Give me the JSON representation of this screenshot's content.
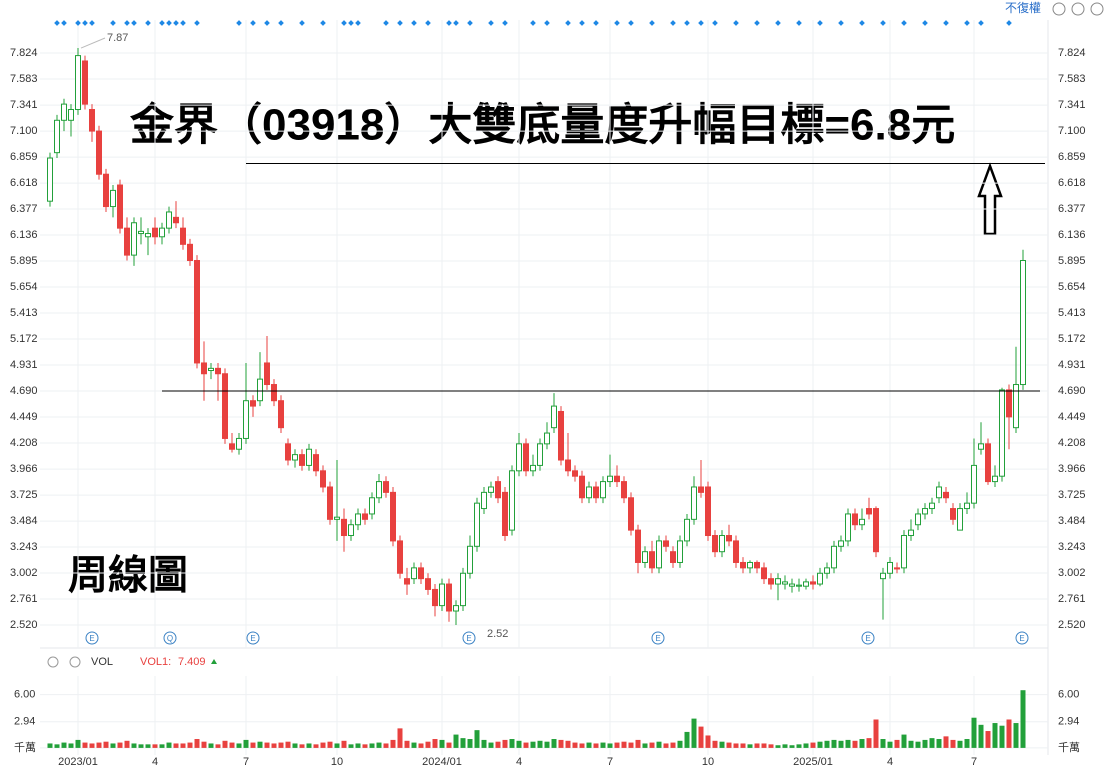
{
  "chart_data": {
    "type": "candlestick",
    "title": "金界（03918）大雙底量度升幅目標=6.8元",
    "subtitle": "周線圖",
    "mode_label": "不復權",
    "volume_label": "VOL",
    "vol1_label": "VOL1:",
    "vol1_value": 7.409,
    "high_label": 7.87,
    "low_label": 2.52,
    "event_markers": [
      "E",
      "Q",
      "E",
      "E",
      "E",
      "E",
      "E"
    ],
    "lines": [
      6.8,
      4.69
    ],
    "up_color": "#22a03a",
    "down_color": "#e8413f",
    "ylim": [
      2.307,
      8.13
    ],
    "yticks": [
      {
        "value": 7.824,
        "label": "7.824"
      },
      {
        "value": 7.583,
        "label": "7.583"
      },
      {
        "value": 7.341,
        "label": "7.341"
      },
      {
        "value": 7.1,
        "label": "7.100"
      },
      {
        "value": 6.859,
        "label": "6.859"
      },
      {
        "value": 6.618,
        "label": "6.618"
      },
      {
        "value": 6.377,
        "label": "6.377"
      },
      {
        "value": 6.136,
        "label": "6.136"
      },
      {
        "value": 5.895,
        "label": "5.895"
      },
      {
        "value": 5.654,
        "label": "5.654"
      },
      {
        "value": 5.413,
        "label": "5.413"
      },
      {
        "value": 5.172,
        "label": "5.172"
      },
      {
        "value": 4.931,
        "label": "4.931"
      },
      {
        "value": 4.69,
        "label": "4.690"
      },
      {
        "value": 4.449,
        "label": "4.449"
      },
      {
        "value": 4.208,
        "label": "4.208"
      },
      {
        "value": 3.966,
        "label": "3.966"
      },
      {
        "value": 3.725,
        "label": "3.725"
      },
      {
        "value": 3.484,
        "label": "3.484"
      },
      {
        "value": 3.243,
        "label": "3.243"
      },
      {
        "value": 3.002,
        "label": "3.002"
      },
      {
        "value": 2.761,
        "label": "2.761"
      },
      {
        "value": 2.52,
        "label": "2.520"
      }
    ],
    "vol_ylim": [
      -0.8,
      8.1
    ],
    "vol_yticks": [
      {
        "value": 6,
        "label": "6.00"
      },
      2.94,
      {
        "value": 0,
        "label": "千萬"
      }
    ],
    "xticks": [
      {
        "value": 4,
        "label": "2023/01"
      },
      {
        "value": 15,
        "label": "4"
      },
      {
        "value": 28,
        "label": "7"
      },
      {
        "value": 41,
        "label": "10"
      },
      {
        "value": 56,
        "label": "2024/01"
      },
      {
        "value": 67,
        "label": "4"
      },
      {
        "value": 80,
        "label": "7"
      },
      {
        "value": 94,
        "label": "10"
      },
      {
        "value": 109,
        "label": "2025/01"
      },
      {
        "value": 120,
        "label": "4"
      },
      {
        "value": 132,
        "label": "7"
      }
    ],
    "candles": [
      [
        6.45,
        6.9,
        6.4,
        6.85
      ],
      [
        6.9,
        7.25,
        6.85,
        7.2
      ],
      [
        7.2,
        7.4,
        7.1,
        7.35
      ],
      [
        7.2,
        7.35,
        7.05,
        7.3
      ],
      [
        7.3,
        7.87,
        7.25,
        7.8
      ],
      [
        7.75,
        7.8,
        7.3,
        7.35
      ],
      [
        7.3,
        7.35,
        7.0,
        7.1
      ],
      [
        7.1,
        7.15,
        6.65,
        6.7
      ],
      [
        6.7,
        6.75,
        6.35,
        6.4
      ],
      [
        6.4,
        6.6,
        6.3,
        6.55
      ],
      [
        6.6,
        6.65,
        6.15,
        6.2
      ],
      [
        6.2,
        6.3,
        5.9,
        5.95
      ],
      [
        5.95,
        6.3,
        5.85,
        6.25
      ],
      [
        6.15,
        6.3,
        6.05,
        6.17
      ],
      [
        6.12,
        6.2,
        5.95,
        6.15
      ],
      [
        6.2,
        6.3,
        6.05,
        6.12
      ],
      [
        6.12,
        6.25,
        6.05,
        6.2
      ],
      [
        6.2,
        6.4,
        6.15,
        6.35
      ],
      [
        6.3,
        6.45,
        6.2,
        6.25
      ],
      [
        6.2,
        6.3,
        6.0,
        6.05
      ],
      [
        6.05,
        6.1,
        5.85,
        5.9
      ],
      [
        5.9,
        5.95,
        4.9,
        4.95
      ],
      [
        4.95,
        5.15,
        4.6,
        4.85
      ],
      [
        4.88,
        4.95,
        4.8,
        4.9
      ],
      [
        4.9,
        4.95,
        4.6,
        4.85
      ],
      [
        4.85,
        4.9,
        4.2,
        4.25
      ],
      [
        4.2,
        4.3,
        4.12,
        4.15
      ],
      [
        4.15,
        4.3,
        4.1,
        4.25
      ],
      [
        4.25,
        4.95,
        4.2,
        4.6
      ],
      [
        4.6,
        4.65,
        4.45,
        4.55
      ],
      [
        4.6,
        5.05,
        4.55,
        4.8
      ],
      [
        4.95,
        5.2,
        4.7,
        4.75
      ],
      [
        4.75,
        4.8,
        4.55,
        4.6
      ],
      [
        4.6,
        4.65,
        4.3,
        4.35
      ],
      [
        4.2,
        4.25,
        4.0,
        4.05
      ],
      [
        4.05,
        4.15,
        3.98,
        4.1
      ],
      [
        4.1,
        4.15,
        3.95,
        4.0
      ],
      [
        4.0,
        4.2,
        3.95,
        4.15
      ],
      [
        4.1,
        4.15,
        3.9,
        3.95
      ],
      [
        3.95,
        4.0,
        3.75,
        3.8
      ],
      [
        3.8,
        3.85,
        3.45,
        3.5
      ],
      [
        3.5,
        4.05,
        3.3,
        3.52
      ],
      [
        3.5,
        3.6,
        3.2,
        3.35
      ],
      [
        3.35,
        3.5,
        3.3,
        3.45
      ],
      [
        3.45,
        3.6,
        3.4,
        3.55
      ],
      [
        3.55,
        3.6,
        3.45,
        3.5
      ],
      [
        3.55,
        3.75,
        3.5,
        3.7
      ],
      [
        3.7,
        3.92,
        3.65,
        3.85
      ],
      [
        3.85,
        3.9,
        3.7,
        3.75
      ],
      [
        3.75,
        3.8,
        3.25,
        3.3
      ],
      [
        3.3,
        3.35,
        2.95,
        3.0
      ],
      [
        2.95,
        3.05,
        2.8,
        2.9
      ],
      [
        2.95,
        3.1,
        2.9,
        3.05
      ],
      [
        3.05,
        3.1,
        2.9,
        2.95
      ],
      [
        2.95,
        3.0,
        2.8,
        2.85
      ],
      [
        2.85,
        2.9,
        2.6,
        2.7
      ],
      [
        2.7,
        2.95,
        2.65,
        2.9
      ],
      [
        2.9,
        2.95,
        2.55,
        2.65
      ],
      [
        2.65,
        2.75,
        2.52,
        2.7
      ],
      [
        2.7,
        3.05,
        2.65,
        3.0
      ],
      [
        3.0,
        3.35,
        2.95,
        3.25
      ],
      [
        3.25,
        3.7,
        3.2,
        3.65
      ],
      [
        3.6,
        3.8,
        3.55,
        3.75
      ],
      [
        3.75,
        3.85,
        3.7,
        3.8
      ],
      [
        3.85,
        3.9,
        3.65,
        3.7
      ],
      [
        3.75,
        3.8,
        3.3,
        3.35
      ],
      [
        3.4,
        4.0,
        3.35,
        3.95
      ],
      [
        3.95,
        4.3,
        3.9,
        4.2
      ],
      [
        4.2,
        4.25,
        3.9,
        3.95
      ],
      [
        3.95,
        4.1,
        3.9,
        4.0
      ],
      [
        4.0,
        4.25,
        3.95,
        4.2
      ],
      [
        4.2,
        4.4,
        4.15,
        4.3
      ],
      [
        4.35,
        4.67,
        4.3,
        4.55
      ],
      [
        4.5,
        4.55,
        4.0,
        4.05
      ],
      [
        4.05,
        4.3,
        3.9,
        3.95
      ],
      [
        3.95,
        4.0,
        3.85,
        3.9
      ],
      [
        3.9,
        3.95,
        3.65,
        3.7
      ],
      [
        3.7,
        3.85,
        3.65,
        3.8
      ],
      [
        3.8,
        3.85,
        3.65,
        3.7
      ],
      [
        3.7,
        3.9,
        3.65,
        3.85
      ],
      [
        3.85,
        4.1,
        3.8,
        3.9
      ],
      [
        3.9,
        4.0,
        3.8,
        3.85
      ],
      [
        3.85,
        3.9,
        3.65,
        3.7
      ],
      [
        3.7,
        3.75,
        3.35,
        3.4
      ],
      [
        3.4,
        3.45,
        3.0,
        3.1
      ],
      [
        3.1,
        3.25,
        3.05,
        3.2
      ],
      [
        3.2,
        3.3,
        3.0,
        3.05
      ],
      [
        3.05,
        3.35,
        3.0,
        3.3
      ],
      [
        3.3,
        3.35,
        3.2,
        3.25
      ],
      [
        3.2,
        3.25,
        3.05,
        3.1
      ],
      [
        3.1,
        3.35,
        3.05,
        3.3
      ],
      [
        3.3,
        3.55,
        3.25,
        3.5
      ],
      [
        3.5,
        3.9,
        3.45,
        3.8
      ],
      [
        3.8,
        4.05,
        3.7,
        3.75
      ],
      [
        3.8,
        3.85,
        3.3,
        3.35
      ],
      [
        3.35,
        3.4,
        3.15,
        3.2
      ],
      [
        3.2,
        3.4,
        3.15,
        3.35
      ],
      [
        3.35,
        3.45,
        3.25,
        3.3
      ],
      [
        3.3,
        3.35,
        3.05,
        3.1
      ],
      [
        3.1,
        3.15,
        3.0,
        3.05
      ],
      [
        3.05,
        3.12,
        3.0,
        3.1
      ],
      [
        3.1,
        3.12,
        3.0,
        3.05
      ],
      [
        3.05,
        3.1,
        2.9,
        2.95
      ],
      [
        2.95,
        3.0,
        2.85,
        2.9
      ],
      [
        2.9,
        3.0,
        2.75,
        2.95
      ],
      [
        2.9,
        2.98,
        2.85,
        2.92
      ],
      [
        2.88,
        2.95,
        2.82,
        2.9
      ],
      [
        2.88,
        2.95,
        2.83,
        2.89
      ],
      [
        2.88,
        2.95,
        2.85,
        2.92
      ],
      [
        2.92,
        2.98,
        2.85,
        2.9
      ],
      [
        2.9,
        3.05,
        2.88,
        3.0
      ],
      [
        3.0,
        3.1,
        2.95,
        3.05
      ],
      [
        3.05,
        3.3,
        3.0,
        3.25
      ],
      [
        3.25,
        3.35,
        3.2,
        3.3
      ],
      [
        3.3,
        3.6,
        3.25,
        3.55
      ],
      [
        3.55,
        3.6,
        3.4,
        3.45
      ],
      [
        3.45,
        3.6,
        3.4,
        3.5
      ],
      [
        3.6,
        3.7,
        3.5,
        3.55
      ],
      [
        3.6,
        3.62,
        3.15,
        3.2
      ],
      [
        2.95,
        3.05,
        2.57,
        3.0
      ],
      [
        3.0,
        3.15,
        2.95,
        3.1
      ],
      [
        3.05,
        3.1,
        3.0,
        3.04
      ],
      [
        3.05,
        3.4,
        3.0,
        3.35
      ],
      [
        3.35,
        3.5,
        3.3,
        3.4
      ],
      [
        3.45,
        3.6,
        3.4,
        3.55
      ],
      [
        3.55,
        3.65,
        3.5,
        3.6
      ],
      [
        3.6,
        3.7,
        3.55,
        3.65
      ],
      [
        3.7,
        3.85,
        3.65,
        3.8
      ],
      [
        3.75,
        3.8,
        3.65,
        3.7
      ],
      [
        3.6,
        3.65,
        3.45,
        3.5
      ],
      [
        3.4,
        3.65,
        3.4,
        3.6
      ],
      [
        3.6,
        3.75,
        3.55,
        3.65
      ],
      [
        3.65,
        4.25,
        3.6,
        4.0
      ],
      [
        4.15,
        4.4,
        4.1,
        4.2
      ],
      [
        4.2,
        4.25,
        3.82,
        3.85
      ],
      [
        3.85,
        4.0,
        3.8,
        3.9
      ],
      [
        3.9,
        4.72,
        3.85,
        4.7
      ],
      [
        4.7,
        4.75,
        4.15,
        4.45
      ],
      [
        4.35,
        5.1,
        4.3,
        4.75
      ],
      [
        4.75,
        6.0,
        4.7,
        5.9
      ]
    ],
    "volumes": [
      0.5,
      0.4,
      0.6,
      0.5,
      0.9,
      0.6,
      0.5,
      0.6,
      0.7,
      0.5,
      0.6,
      0.8,
      0.5,
      0.4,
      0.4,
      0.4,
      0.4,
      0.6,
      0.5,
      0.5,
      0.6,
      1.0,
      0.7,
      0.5,
      0.4,
      0.8,
      0.6,
      0.5,
      0.9,
      0.6,
      0.7,
      0.6,
      0.5,
      0.6,
      0.7,
      0.5,
      0.4,
      0.5,
      0.4,
      0.6,
      0.7,
      0.5,
      0.8,
      0.4,
      0.5,
      0.4,
      0.5,
      0.6,
      0.5,
      0.9,
      2.2,
      0.8,
      0.6,
      0.5,
      0.7,
      1.0,
      0.9,
      0.6,
      1.5,
      1.1,
      1.0,
      2.0,
      0.9,
      0.6,
      0.7,
      0.9,
      1.0,
      0.8,
      0.6,
      0.7,
      0.8,
      0.7,
      1.0,
      0.9,
      0.8,
      0.6,
      0.5,
      0.6,
      0.5,
      0.6,
      0.5,
      0.6,
      0.7,
      0.6,
      0.9,
      0.5,
      0.6,
      0.7,
      0.5,
      0.6,
      0.8,
      1.8,
      3.3,
      2.4,
      1.4,
      0.8,
      0.7,
      0.6,
      0.5,
      0.5,
      0.4,
      0.5,
      0.5,
      0.4,
      0.3,
      0.4,
      0.3,
      0.4,
      0.5,
      0.6,
      0.7,
      0.8,
      0.9,
      0.8,
      0.9,
      0.8,
      1.0,
      1.1,
      3.2,
      1.0,
      0.7,
      0.9,
      1.5,
      0.8,
      0.7,
      0.9,
      1.1,
      1.0,
      1.3,
      0.9,
      0.8,
      1.0,
      3.4,
      2.6,
      1.9,
      2.8,
      2.5,
      3.2,
      2.8,
      6.5
    ]
  }
}
